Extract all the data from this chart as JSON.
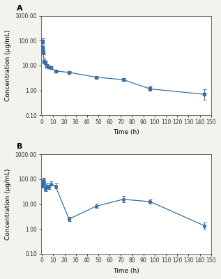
{
  "panel_A": {
    "label": "A",
    "x": [
      0.25,
      0.5,
      1,
      2,
      3,
      4,
      6,
      8,
      12,
      24,
      48,
      72,
      96,
      144
    ],
    "y": [
      95.0,
      52.0,
      35.0,
      14.5,
      13.0,
      9.5,
      8.8,
      8.0,
      6.0,
      5.3,
      3.4,
      2.7,
      1.15,
      0.7
    ],
    "yerr_low": [
      18.0,
      10.0,
      7.0,
      2.5,
      1.8,
      1.2,
      1.0,
      0.9,
      0.7,
      0.5,
      0.4,
      0.35,
      0.18,
      0.28
    ],
    "yerr_high": [
      28.0,
      16.0,
      10.0,
      4.0,
      2.8,
      1.8,
      1.3,
      1.1,
      0.9,
      0.7,
      0.5,
      0.45,
      0.35,
      0.42
    ],
    "ylabel": "Concentration (μg/mL)",
    "xlabel": "Time (h)",
    "ylim": [
      0.1,
      1000.0
    ],
    "yticks": [
      0.1,
      1.0,
      10.0,
      100.0,
      1000.0
    ],
    "ytick_labels": [
      "0.10",
      "1.00",
      "10.00",
      "100.00",
      "1000.00"
    ],
    "xticks": [
      0,
      10,
      20,
      30,
      40,
      50,
      60,
      70,
      80,
      90,
      100,
      110,
      120,
      130,
      140,
      150
    ],
    "xlim": [
      -1,
      150
    ],
    "color": "#3a6ea5",
    "marker": "s"
  },
  "panel_B": {
    "label": "B",
    "x": [
      0.25,
      0.5,
      1,
      2,
      3,
      4,
      6,
      8,
      12,
      24,
      48,
      72,
      96,
      144
    ],
    "y": [
      55.0,
      75.0,
      88.0,
      82.0,
      40.0,
      52.0,
      48.0,
      65.0,
      52.0,
      2.5,
      8.2,
      15.5,
      12.5,
      1.35
    ],
    "yerr_low": [
      9.0,
      14.0,
      22.0,
      18.0,
      7.0,
      9.0,
      7.0,
      11.0,
      9.0,
      0.4,
      1.2,
      4.0,
      2.2,
      0.32
    ],
    "yerr_high": [
      14.0,
      20.0,
      28.0,
      25.0,
      11.0,
      14.0,
      11.0,
      17.0,
      14.0,
      0.5,
      2.2,
      5.5,
      3.2,
      0.42
    ],
    "ylabel": "Concentration (μg/mL)",
    "xlabel": "Time (h)",
    "ylim": [
      0.1,
      1000.0
    ],
    "yticks": [
      0.1,
      1.0,
      10.0,
      100.0,
      1000.0
    ],
    "ytick_labels": [
      "0.10",
      "1.00",
      "10.00",
      "100.00",
      "1000.00"
    ],
    "xticks": [
      0,
      10,
      20,
      30,
      40,
      50,
      60,
      70,
      80,
      90,
      100,
      110,
      120,
      130,
      140,
      150
    ],
    "xlim": [
      -1,
      150
    ],
    "color": "#3a6ea5",
    "marker": "o"
  },
  "bg_color": "#ffffff",
  "fig_bg_color": "#f2f2ee",
  "label_fontsize": 6.5,
  "tick_fontsize": 5.5,
  "panel_label_fontsize": 8
}
